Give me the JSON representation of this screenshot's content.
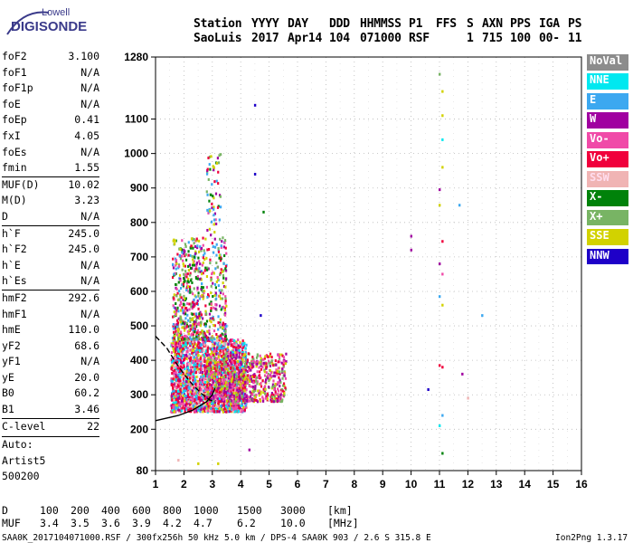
{
  "logo": {
    "line1": "Lowell",
    "line2": "DIGISONDE"
  },
  "header": {
    "row1": [
      "Station",
      "YYYY",
      "DAY",
      "DDD",
      "HHMMSS",
      "P1",
      "FFS",
      "S",
      "AXN",
      "PPS",
      "IGA",
      "PS"
    ],
    "row2": [
      "SaoLuis",
      "2017",
      "Apr14",
      "104",
      "071000",
      "RSF",
      "1",
      "715",
      "100",
      "00-",
      "11"
    ]
  },
  "params": [
    {
      "name": "foF2",
      "value": "3.100"
    },
    {
      "name": "foF1",
      "value": "N/A"
    },
    {
      "name": "foF1p",
      "value": "N/A"
    },
    {
      "name": "foE",
      "value": "N/A"
    },
    {
      "name": "foEp",
      "value": "0.41"
    },
    {
      "name": "fxI",
      "value": "4.05"
    },
    {
      "name": "foEs",
      "value": "N/A"
    },
    {
      "name": "fmin",
      "value": "1.55"
    },
    {
      "name": "MUF(D)",
      "value": "10.02"
    },
    {
      "name": "M(D)",
      "value": "3.23"
    },
    {
      "name": "D",
      "value": "N/A"
    },
    {
      "name": "h`F",
      "value": "245.0"
    },
    {
      "name": "h`F2",
      "value": "245.0"
    },
    {
      "name": "h`E",
      "value": "N/A"
    },
    {
      "name": "h`Es",
      "value": "N/A"
    },
    {
      "name": "hmF2",
      "value": "292.6"
    },
    {
      "name": "hmF1",
      "value": "N/A"
    },
    {
      "name": "hmE",
      "value": "110.0"
    },
    {
      "name": "yF2",
      "value": "68.6"
    },
    {
      "name": "yF1",
      "value": "N/A"
    },
    {
      "name": "yE",
      "value": "20.0"
    },
    {
      "name": "B0",
      "value": "60.2"
    },
    {
      "name": "B1",
      "value": "3.46"
    },
    {
      "name": "C-level",
      "value": "22"
    }
  ],
  "autoscale": {
    "line1": "Auto:",
    "line2": "Artist5",
    "line3": "500200"
  },
  "legend": [
    {
      "label": "NoVal",
      "color": "#8c8c8c"
    },
    {
      "label": "NNE",
      "color": "#00e8f0"
    },
    {
      "label": "E",
      "color": "#3ca8f0"
    },
    {
      "label": "W",
      "color": "#a000a0"
    },
    {
      "label": "Vo-",
      "color": "#f04aa8"
    },
    {
      "label": "Vo+",
      "color": "#f0003c"
    },
    {
      "label": "SSW",
      "color": "#f0b4b4"
    },
    {
      "label": "X-",
      "color": "#00820a"
    },
    {
      "label": "X+",
      "color": "#78b464"
    },
    {
      "label": "SSE",
      "color": "#d2d200"
    },
    {
      "label": "NNW",
      "color": "#1e00c8"
    }
  ],
  "chart_data": {
    "type": "scatter",
    "xlim": [
      1,
      16
    ],
    "ylim": [
      80,
      1280
    ],
    "xticks": [
      1,
      2,
      3,
      4,
      5,
      6,
      7,
      8,
      9,
      10,
      11,
      12,
      13,
      14,
      15,
      16
    ],
    "yticks": [
      80,
      200,
      300,
      400,
      500,
      600,
      700,
      800,
      900,
      1000,
      1100,
      1280
    ],
    "grid": true,
    "clusters": [
      {
        "fmin": 1.55,
        "fmax": 4.2,
        "hmin": 250,
        "hmax": 460,
        "density": "high",
        "direction": "Vo+"
      },
      {
        "fmin": 1.6,
        "fmax": 3.5,
        "hmin": 460,
        "hmax": 1000,
        "density": "medium",
        "direction": "Vo-"
      },
      {
        "fmin": 2.8,
        "fmax": 5.6,
        "hmin": 280,
        "hmax": 420,
        "density": "medium",
        "direction": "SSE"
      }
    ],
    "points": [
      {
        "f": 11.0,
        "h": 1230,
        "c": "X+"
      },
      {
        "f": 11.1,
        "h": 1180,
        "c": "SSE"
      },
      {
        "f": 11.1,
        "h": 1110,
        "c": "SSE"
      },
      {
        "f": 11.1,
        "h": 1040,
        "c": "NNE"
      },
      {
        "f": 11.1,
        "h": 960,
        "c": "SSE"
      },
      {
        "f": 11.0,
        "h": 895,
        "c": "W"
      },
      {
        "f": 11.0,
        "h": 850,
        "c": "SSE"
      },
      {
        "f": 11.7,
        "h": 850,
        "c": "E"
      },
      {
        "f": 10.0,
        "h": 760,
        "c": "W"
      },
      {
        "f": 10.0,
        "h": 720,
        "c": "W"
      },
      {
        "f": 11.1,
        "h": 745,
        "c": "Vo+"
      },
      {
        "f": 11.0,
        "h": 680,
        "c": "W"
      },
      {
        "f": 11.1,
        "h": 650,
        "c": "Vo-"
      },
      {
        "f": 11.0,
        "h": 585,
        "c": "E"
      },
      {
        "f": 11.1,
        "h": 560,
        "c": "SSE"
      },
      {
        "f": 12.5,
        "h": 530,
        "c": "E"
      },
      {
        "f": 11.0,
        "h": 385,
        "c": "Vo+"
      },
      {
        "f": 11.1,
        "h": 380,
        "c": "Vo+"
      },
      {
        "f": 11.8,
        "h": 360,
        "c": "W"
      },
      {
        "f": 10.6,
        "h": 315,
        "c": "NNW"
      },
      {
        "f": 11.1,
        "h": 240,
        "c": "E"
      },
      {
        "f": 11.0,
        "h": 210,
        "c": "NNE"
      },
      {
        "f": 11.1,
        "h": 130,
        "c": "X-"
      },
      {
        "f": 12.0,
        "h": 290,
        "c": "SSW"
      },
      {
        "f": 4.5,
        "h": 1140,
        "c": "NNW"
      },
      {
        "f": 4.5,
        "h": 940,
        "c": "NNW"
      },
      {
        "f": 4.8,
        "h": 830,
        "c": "X-"
      },
      {
        "f": 4.9,
        "h": 380,
        "c": "Vo+"
      },
      {
        "f": 4.7,
        "h": 530,
        "c": "NNW"
      },
      {
        "f": 1.8,
        "h": 110,
        "c": "SSW"
      },
      {
        "f": 2.5,
        "h": 100,
        "c": "SSE"
      },
      {
        "f": 3.2,
        "h": 100,
        "c": "SSE"
      },
      {
        "f": 4.3,
        "h": 140,
        "c": "W"
      }
    ],
    "curves": [
      {
        "style": "solid",
        "points": [
          [
            1.0,
            225
          ],
          [
            1.8,
            240
          ],
          [
            2.3,
            255
          ],
          [
            2.8,
            280
          ],
          [
            3.0,
            300
          ],
          [
            3.1,
            320
          ]
        ]
      },
      {
        "style": "dashed",
        "points": [
          [
            1.0,
            470
          ],
          [
            1.4,
            435
          ],
          [
            1.7,
            395
          ],
          [
            2.0,
            360
          ],
          [
            2.3,
            330
          ],
          [
            2.6,
            305
          ],
          [
            2.9,
            285
          ],
          [
            3.1,
            280
          ]
        ]
      }
    ]
  },
  "footer": {
    "d_label": "D",
    "d_values": [
      "100",
      "200",
      "400",
      "600",
      "800",
      "1000",
      "1500",
      "3000",
      "[km]"
    ],
    "muf_label": "MUF",
    "muf_values": [
      "3.4",
      "3.5",
      "3.6",
      "3.9",
      "4.2",
      "4.7",
      "6.2",
      "10.0",
      "[MHz]"
    ],
    "file_info": "SAA0K_2017104071000.RSF / 300fx256h 50 kHz 5.0 km / DPS-4 SAA0K 903 / 2.6 S 315.8 E",
    "version": "Ion2Png 1.3.17"
  }
}
